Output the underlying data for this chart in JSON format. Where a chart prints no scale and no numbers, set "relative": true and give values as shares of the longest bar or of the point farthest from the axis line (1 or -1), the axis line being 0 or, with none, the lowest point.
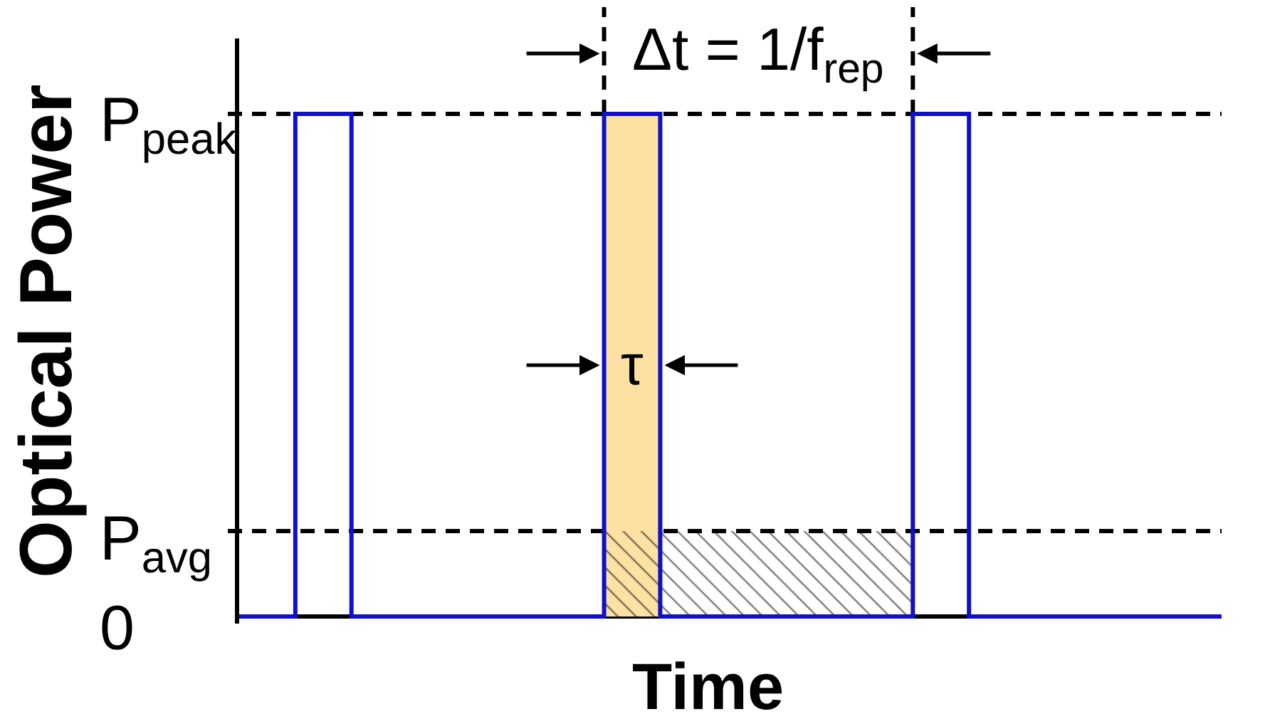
{
  "chart_data": {
    "type": "step",
    "xlabel": "Time",
    "ylabel": "Optical Power",
    "categories": [
      null,
      null,
      null,
      null,
      null,
      null,
      null,
      null,
      null,
      null,
      null,
      null,
      null,
      null,
      null,
      null,
      null,
      null,
      null,
      null,
      null,
      null,
      null,
      null,
      null,
      null,
      null,
      null,
      null,
      null,
      null,
      null,
      null,
      null,
      null,
      null
    ],
    "relative": true,
    "series": [
      {
        "type": "area",
        "color": "#fce1a3",
        "values": [
          null,
          null,
          null,
          null,
          null,
          null,
          null,
          null,
          null,
          null,
          null,
          null,
          null,
          1,
          1,
          1,
          null,
          null,
          null,
          null,
          null,
          null,
          null,
          null,
          null,
          null,
          null,
          null,
          null,
          null,
          null,
          null,
          null,
          null,
          null,
          null
        ]
      },
      {
        "type": "area",
        "color": "#000000",
        "values": [
          null,
          null,
          null,
          null,
          null,
          null,
          null,
          null,
          null,
          null,
          null,
          null,
          null,
          0.17,
          0.17,
          0.17,
          0.17,
          0.17,
          0.17,
          0.17,
          0.17,
          0.17,
          0.17,
          0.17,
          0.17,
          null,
          null,
          null,
          null,
          null,
          null,
          null,
          null,
          null,
          null,
          null
        ]
      },
      {
        "color": "#1010c8",
        "values": [
          0,
          0,
          1,
          1,
          0,
          0,
          0,
          0,
          0,
          0,
          0,
          0,
          0,
          1,
          1,
          0,
          0,
          0,
          0,
          0,
          0,
          0,
          0,
          0,
          1,
          1,
          0,
          0,
          0,
          0,
          0,
          0,
          0,
          0,
          0,
          0
        ]
      }
    ],
    "ref_lines": [
      {
        "axis": "y",
        "value": 1,
        "label": "P$_{peak}$",
        "line_style": "dashed",
        "color": "#000000"
      },
      {
        "axis": "y",
        "value": 0.17,
        "label": "P$_{avg}$",
        "line_style": "dashed",
        "color": "#000000"
      }
    ],
    "annotations": [
      "Δt = 1/f$_{rep}$",
      "τ",
      "0"
    ],
    "marker": "none",
    "line_style": "solid"
  }
}
